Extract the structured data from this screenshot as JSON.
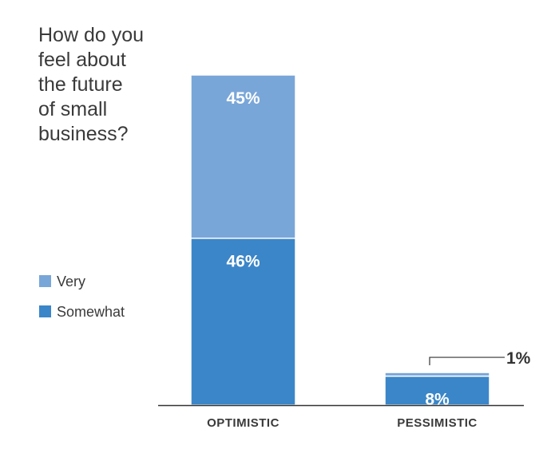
{
  "chart_data": {
    "type": "bar",
    "stacked": true,
    "title": "How do you feel about the future of small business?",
    "title_lines": [
      "How do you",
      "feel about",
      "the future",
      "of small",
      "business?"
    ],
    "categories": [
      "OPTIMISTIC",
      "PESSIMISTIC"
    ],
    "series": [
      {
        "name": "Somewhat",
        "values": [
          46,
          8
        ],
        "labels": [
          "46%",
          "8%"
        ],
        "color": "#3b86c8"
      },
      {
        "name": "Very",
        "values": [
          45,
          1
        ],
        "labels": [
          "45%",
          "1%"
        ],
        "color": "#79a6d8"
      }
    ],
    "legend_order": [
      "Very",
      "Somewhat"
    ],
    "legend_position": "left",
    "xlabel": "",
    "ylabel": "",
    "ylim": [
      0,
      91
    ],
    "grid": false,
    "colors": {
      "text": "#3a3a3a",
      "axis": "#333333",
      "bar_label": "#ffffff"
    }
  }
}
